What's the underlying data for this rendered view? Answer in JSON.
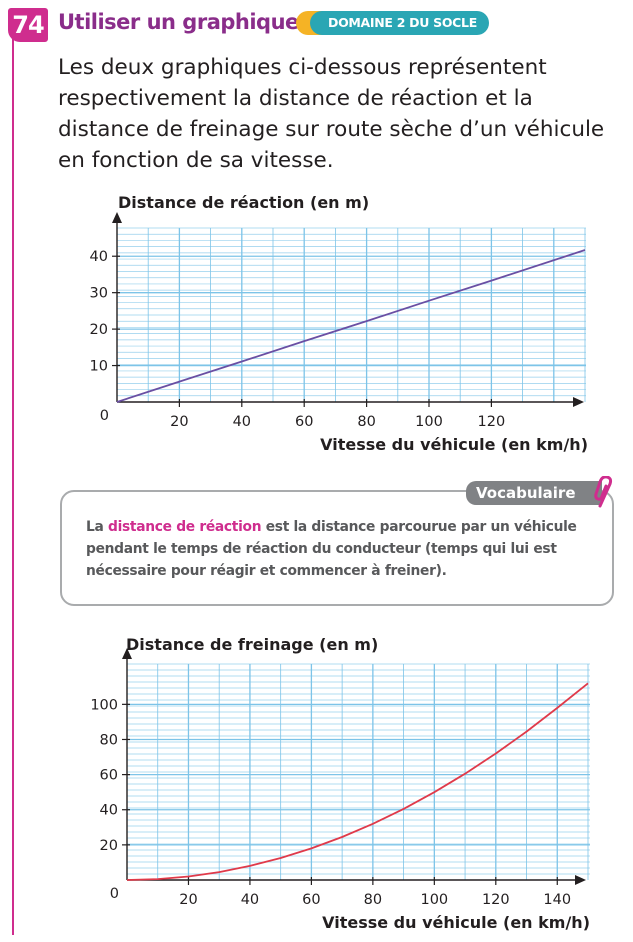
{
  "exercise": {
    "number": "74",
    "title": "Utiliser un graphique",
    "badge": "DOMAINE 2 DU SOCLE",
    "intro": "Les deux graphiques ci-dessous représentent respectivement la distance de réaction et la distance de freinage sur route sèche d’un véhicule en fonction de sa vitesse."
  },
  "vocabulary": {
    "tag": "Vocabulaire",
    "term": "distance de réaction",
    "prefix": "La ",
    "definition": " est la distance parcourue par un véhicule pendant le temps de réaction du conducteur (temps qui lui est nécessaire pour réagir et commencer à freiner)."
  },
  "colors": {
    "accent": "#cf2d8e",
    "title": "#8a2d8a",
    "badge": "#2aa6b4",
    "badge_dot": "#f5b325",
    "grid": "#7dc4e8",
    "line_reaction": "#6a4fa3",
    "line_braking": "#e03a4a"
  },
  "icons": {
    "vocab": "paperclip-icon"
  },
  "chart_data": [
    {
      "type": "line",
      "title": "Distance de réaction (en m)",
      "xlabel": "Vitesse du véhicule (en km/h)",
      "ylabel": "",
      "xlim": [
        0,
        150
      ],
      "ylim": [
        0,
        45
      ],
      "x_ticks": [
        20,
        40,
        60,
        80,
        100,
        120
      ],
      "y_ticks": [
        10,
        20,
        30,
        40
      ],
      "origin_label": "0",
      "grid": true,
      "series": [
        {
          "x": [
            0,
            20,
            40,
            60,
            80,
            100,
            120,
            150
          ],
          "y": [
            0,
            5.6,
            11.1,
            16.7,
            22.2,
            27.8,
            33.3,
            41.7
          ]
        }
      ]
    },
    {
      "type": "line",
      "title": "Distance de freinage (en m)",
      "xlabel": "Vitesse du véhicule (en km/h)",
      "ylabel": "",
      "xlim": [
        0,
        150
      ],
      "ylim": [
        0,
        115
      ],
      "x_ticks": [
        20,
        40,
        60,
        80,
        100,
        120,
        140
      ],
      "y_ticks": [
        20,
        40,
        60,
        80,
        100
      ],
      "origin_label": "0",
      "grid": true,
      "series": [
        {
          "x": [
            0,
            10,
            20,
            30,
            40,
            50,
            60,
            70,
            80,
            90,
            100,
            110,
            120,
            130,
            140,
            150
          ],
          "y": [
            0,
            0.5,
            2,
            4.5,
            8,
            12.5,
            18,
            24.5,
            32,
            40.5,
            50,
            60.5,
            72,
            84.5,
            98,
            112
          ]
        }
      ]
    }
  ]
}
